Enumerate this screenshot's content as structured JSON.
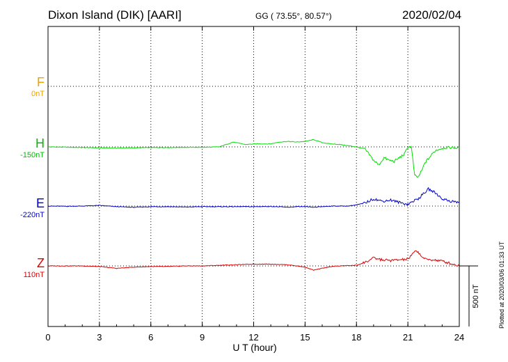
{
  "header": {
    "station": "Dixon Island (DIK)  [AARI]",
    "coords": "GG ( 73.55°,  80.57°)",
    "date": "2020/02/04"
  },
  "footer": {
    "plotted": "Plotted at 2020/03/06 01:33 UT"
  },
  "colors": {
    "F": "#f0a000",
    "H": "#00dd00",
    "E": "#0000cc",
    "Z": "#dd0000"
  },
  "chart_data": {
    "type": "line",
    "xlabel": "U T (hour)",
    "xlim": [
      0,
      24
    ],
    "x_ticks": [
      "0",
      "3",
      "6",
      "9",
      "12",
      "15",
      "18",
      "21",
      "24"
    ],
    "grid": true,
    "scale_bar": {
      "label": "500 nT",
      "value_nT": 500
    },
    "components": [
      {
        "name": "F",
        "offset": "0nT"
      },
      {
        "name": "H",
        "offset": "-150nT"
      },
      {
        "name": "E",
        "offset": "-220nT"
      },
      {
        "name": "Z",
        "offset": "110nT"
      }
    ],
    "series": [
      {
        "name": "H",
        "x": [
          0,
          1,
          2,
          3,
          4,
          5,
          6,
          7,
          8,
          9,
          10,
          10.8,
          11.5,
          12.2,
          13,
          13.5,
          14,
          14.5,
          15,
          15.5,
          16,
          16.5,
          17,
          17.5,
          18,
          18.5,
          19,
          19.3,
          19.6,
          19.9,
          20.2,
          20.5,
          20.8,
          21,
          21.2,
          21.4,
          21.6,
          21.8,
          22,
          22.3,
          22.6,
          23,
          23.5,
          24
        ],
        "y": [
          0,
          -2,
          -5,
          -8,
          -10,
          -8,
          -5,
          -5,
          -3,
          -3,
          0,
          40,
          20,
          25,
          25,
          40,
          45,
          40,
          45,
          60,
          35,
          25,
          20,
          10,
          0,
          -20,
          -110,
          -150,
          -90,
          -110,
          -120,
          -90,
          -60,
          0,
          0,
          -240,
          -250,
          -200,
          -130,
          -80,
          -30,
          -10,
          -5,
          -10
        ]
      },
      {
        "name": "E",
        "x": [
          0,
          1,
          2,
          3,
          4,
          5,
          6,
          7,
          8,
          9,
          10,
          11,
          12,
          13,
          14,
          14.5,
          15,
          15.5,
          16,
          16.5,
          17,
          17.5,
          18,
          18.5,
          19,
          19.5,
          20,
          20.5,
          21,
          21.3,
          21.6,
          21.9,
          22.2,
          22.6,
          23,
          23.5,
          24
        ],
        "y": [
          0,
          -2,
          0,
          5,
          -5,
          -10,
          -5,
          -5,
          -8,
          -5,
          -5,
          -5,
          -5,
          -3,
          -10,
          -5,
          -5,
          -10,
          -5,
          0,
          0,
          0,
          10,
          25,
          60,
          40,
          50,
          30,
          15,
          40,
          60,
          100,
          140,
          110,
          60,
          40,
          30
        ]
      },
      {
        "name": "Z",
        "x": [
          0,
          1,
          2,
          3,
          4,
          5,
          6,
          7,
          8,
          9,
          10,
          11,
          12,
          13,
          14,
          15,
          15.5,
          16,
          16.5,
          17,
          18,
          18.5,
          19,
          19.5,
          20,
          20.5,
          21,
          21.5,
          21.8,
          22,
          22.5,
          23,
          23.5,
          24
        ],
        "y": [
          0,
          0,
          0,
          -5,
          -20,
          -10,
          -5,
          -5,
          0,
          0,
          5,
          10,
          15,
          15,
          10,
          -10,
          -35,
          -20,
          -5,
          0,
          5,
          30,
          65,
          50,
          45,
          50,
          55,
          130,
          80,
          55,
          50,
          40,
          20,
          0
        ]
      }
    ]
  }
}
